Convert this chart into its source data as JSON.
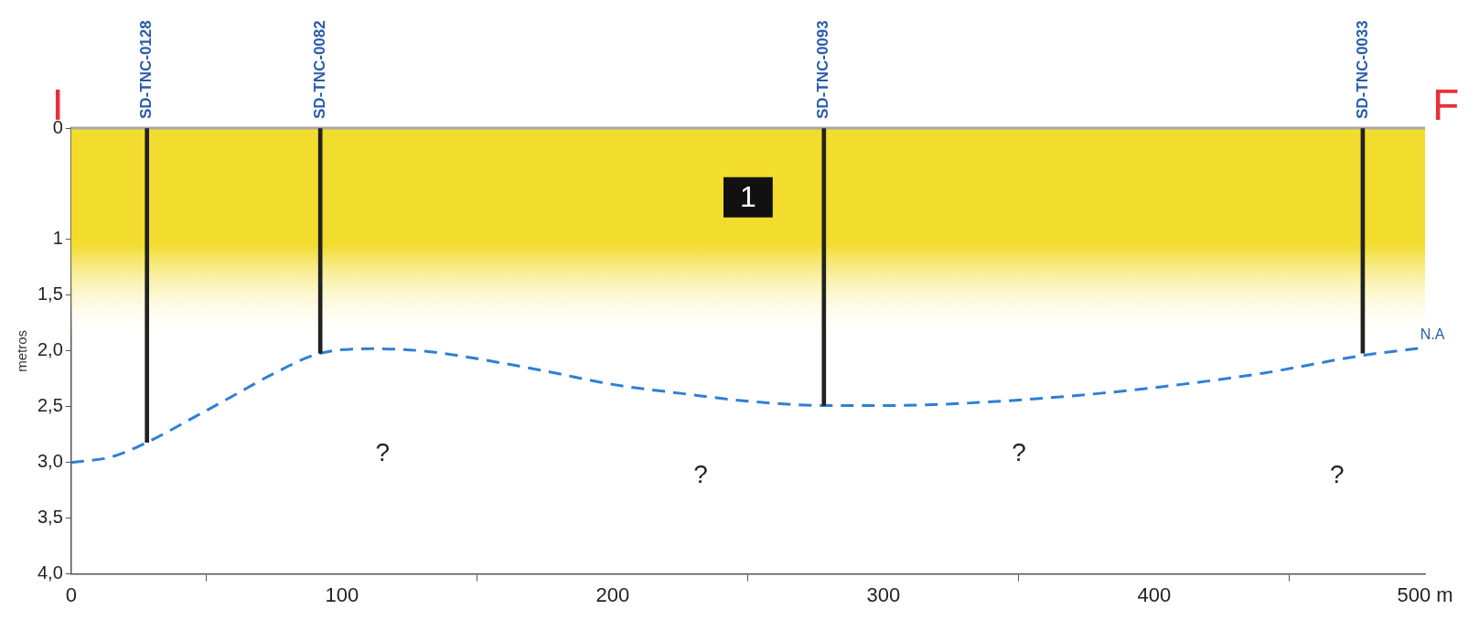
{
  "chart_data": {
    "type": "line",
    "ylabel": "metros",
    "xlim": [
      0,
      500
    ],
    "ylim": [
      4.0,
      0
    ],
    "xticks": [
      0,
      100,
      200,
      300,
      400,
      {
        "value": 500,
        "label": "500 m"
      }
    ],
    "yticks": [
      0,
      1,
      {
        "value": 1.5,
        "label": "1,5"
      },
      {
        "value": 2.0,
        "label": "2,0"
      },
      {
        "value": 2.5,
        "label": "2,5"
      },
      {
        "value": 3.0,
        "label": "3,0"
      },
      {
        "value": 3.5,
        "label": "3,5"
      },
      {
        "value": 4.0,
        "label": "4,0"
      }
    ],
    "series": [
      {
        "type": "bar",
        "color": "#222222",
        "x": [
          28,
          92,
          278,
          477
        ],
        "values": [
          2.82,
          2.02,
          2.49,
          2.02
        ]
      },
      {
        "color": "#2f7fd6",
        "line_style": "dashed",
        "marker": "none",
        "x": [
          0,
          15,
          28,
          45,
          60,
          75,
          92,
          112,
          130,
          150,
          175,
          200,
          225,
          250,
          278,
          300,
          320,
          350,
          380,
          410,
          440,
          477,
          500
        ],
        "values": [
          3.0,
          2.95,
          2.82,
          2.6,
          2.4,
          2.2,
          2.02,
          1.98,
          2.0,
          2.07,
          2.18,
          2.3,
          2.38,
          2.45,
          2.49,
          2.49,
          2.48,
          2.44,
          2.38,
          2.3,
          2.2,
          2.04,
          1.97
        ]
      }
    ],
    "bands": [
      {
        "axis": "y",
        "from": 0,
        "to": 1.9,
        "label": "1",
        "color": "#f2dc2e"
      }
    ],
    "annotations": [
      {
        "text": "I",
        "x": 0,
        "y": 0
      },
      {
        "text": "SD-TNC-0128",
        "x": 28,
        "y": 0
      },
      {
        "text": "SD-TNC-0082",
        "x": 92,
        "y": 0
      },
      {
        "text": "SD-TNC-0093",
        "x": 278,
        "y": 0
      },
      {
        "text": "SD-TNC-0033",
        "x": 477,
        "y": 0
      },
      {
        "text": "F",
        "x": 500,
        "y": 0
      },
      {
        "text": "N.A",
        "x": 500,
        "y": 1.97
      },
      "?",
      "?",
      "?",
      "?"
    ],
    "grid": false,
    "legend": false
  }
}
